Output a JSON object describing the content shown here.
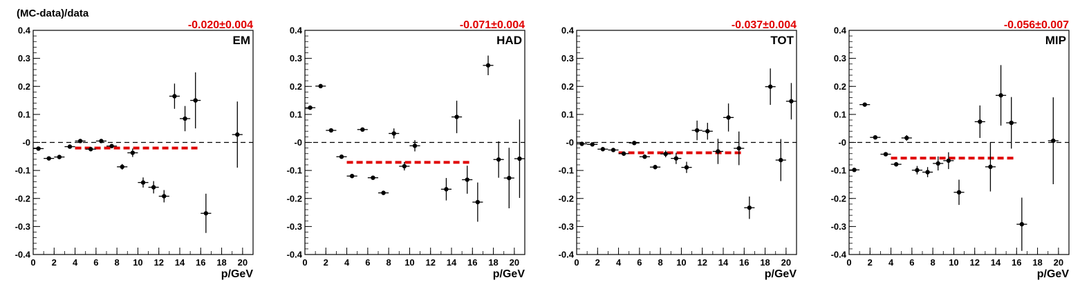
{
  "figure": {
    "ylabel": "(MC-data)/data",
    "xlabel": "p/GeV"
  },
  "colors": {
    "fit": "#e00000",
    "points": "#000000",
    "zero_line": "#000000"
  },
  "chart_data": [
    {
      "type": "scatter",
      "label": "EM",
      "fit_label": "-0.020±0.004",
      "fit": {
        "value": -0.02,
        "x_range": [
          4,
          16
        ]
      },
      "xlim": [
        0,
        21
      ],
      "ylim": [
        -0.4,
        0.4
      ],
      "xticks": [
        "0",
        "2",
        "4",
        "6",
        "8",
        "10",
        "12",
        "14",
        "16",
        "18",
        "20"
      ],
      "yticks": [
        "-0.4",
        "-0.3",
        "-0.2",
        "-0.1",
        "-0",
        "0.1",
        "0.2",
        "0.3",
        "0.4"
      ],
      "points": [
        {
          "x": 0.5,
          "y": -0.022,
          "err": 0.005
        },
        {
          "x": 1.5,
          "y": -0.057,
          "err": 0.004
        },
        {
          "x": 2.5,
          "y": -0.052,
          "err": 0.004
        },
        {
          "x": 3.5,
          "y": -0.015,
          "err": 0.004
        },
        {
          "x": 4.5,
          "y": 0.005,
          "err": 0.004
        },
        {
          "x": 5.5,
          "y": -0.024,
          "err": 0.005
        },
        {
          "x": 6.5,
          "y": 0.005,
          "err": 0.005
        },
        {
          "x": 7.5,
          "y": -0.013,
          "err": 0.007
        },
        {
          "x": 8.5,
          "y": -0.087,
          "err": 0.01
        },
        {
          "x": 9.5,
          "y": -0.037,
          "err": 0.015
        },
        {
          "x": 10.5,
          "y": -0.143,
          "err": 0.018
        },
        {
          "x": 11.5,
          "y": -0.16,
          "err": 0.022
        },
        {
          "x": 12.5,
          "y": -0.192,
          "err": 0.022
        },
        {
          "x": 13.5,
          "y": 0.165,
          "err": 0.045
        },
        {
          "x": 14.5,
          "y": 0.085,
          "err": 0.045
        },
        {
          "x": 15.5,
          "y": 0.15,
          "err": 0.1
        },
        {
          "x": 16.5,
          "y": -0.253,
          "err": 0.07
        },
        {
          "x": 19.5,
          "y": 0.028,
          "err": 0.118
        }
      ]
    },
    {
      "type": "scatter",
      "label": "HAD",
      "fit_label": "-0.071±0.004",
      "fit": {
        "value": -0.071,
        "x_range": [
          4,
          16
        ]
      },
      "xlim": [
        0,
        21
      ],
      "ylim": [
        -0.4,
        0.4
      ],
      "xticks": [
        "0",
        "2",
        "4",
        "6",
        "8",
        "10",
        "12",
        "14",
        "16",
        "18",
        "20"
      ],
      "yticks": [
        "-0.4",
        "-0.3",
        "-0.2",
        "-0.1",
        "-0",
        "0.1",
        "0.2",
        "0.3",
        "0.4"
      ],
      "points": [
        {
          "x": 0.5,
          "y": 0.124,
          "err": 0.004
        },
        {
          "x": 1.5,
          "y": 0.201,
          "err": 0.004
        },
        {
          "x": 2.5,
          "y": 0.043,
          "err": 0.004
        },
        {
          "x": 3.5,
          "y": -0.051,
          "err": 0.004
        },
        {
          "x": 4.5,
          "y": -0.12,
          "err": 0.004
        },
        {
          "x": 5.5,
          "y": 0.046,
          "err": 0.004
        },
        {
          "x": 6.5,
          "y": -0.126,
          "err": 0.004
        },
        {
          "x": 7.5,
          "y": -0.18,
          "err": 0.005
        },
        {
          "x": 8.5,
          "y": 0.032,
          "err": 0.018
        },
        {
          "x": 9.5,
          "y": -0.085,
          "err": 0.015
        },
        {
          "x": 10.5,
          "y": -0.012,
          "err": 0.02
        },
        {
          "x": 13.5,
          "y": -0.167,
          "err": 0.04
        },
        {
          "x": 14.5,
          "y": 0.091,
          "err": 0.058
        },
        {
          "x": 15.5,
          "y": -0.133,
          "err": 0.05
        },
        {
          "x": 16.5,
          "y": -0.213,
          "err": 0.07
        },
        {
          "x": 17.5,
          "y": 0.275,
          "err": 0.035
        },
        {
          "x": 18.5,
          "y": -0.061,
          "err": 0.065
        },
        {
          "x": 19.5,
          "y": -0.127,
          "err": 0.108
        },
        {
          "x": 20.5,
          "y": -0.058,
          "err": 0.14
        }
      ]
    },
    {
      "type": "scatter",
      "label": "TOT",
      "fit_label": "-0.037±0.004",
      "fit": {
        "value": -0.037,
        "x_range": [
          4,
          16
        ]
      },
      "xlim": [
        0,
        21
      ],
      "ylim": [
        -0.4,
        0.4
      ],
      "xticks": [
        "0",
        "2",
        "4",
        "6",
        "8",
        "10",
        "12",
        "14",
        "16",
        "18",
        "20"
      ],
      "yticks": [
        "-0.4",
        "-0.3",
        "-0.2",
        "-0.1",
        "-0",
        "0.1",
        "0.2",
        "0.3",
        "0.4"
      ],
      "points": [
        {
          "x": 0.5,
          "y": -0.005,
          "err": 0.004
        },
        {
          "x": 1.5,
          "y": -0.007,
          "err": 0.004
        },
        {
          "x": 2.5,
          "y": -0.024,
          "err": 0.004
        },
        {
          "x": 3.5,
          "y": -0.027,
          "err": 0.004
        },
        {
          "x": 4.5,
          "y": -0.04,
          "err": 0.004
        },
        {
          "x": 5.5,
          "y": -0.002,
          "err": 0.004
        },
        {
          "x": 6.5,
          "y": -0.051,
          "err": 0.006
        },
        {
          "x": 7.5,
          "y": -0.088,
          "err": 0.008
        },
        {
          "x": 8.5,
          "y": -0.041,
          "err": 0.012
        },
        {
          "x": 9.5,
          "y": -0.057,
          "err": 0.02
        },
        {
          "x": 10.5,
          "y": -0.089,
          "err": 0.02
        },
        {
          "x": 11.5,
          "y": 0.043,
          "err": 0.035
        },
        {
          "x": 12.5,
          "y": 0.04,
          "err": 0.03
        },
        {
          "x": 13.5,
          "y": -0.032,
          "err": 0.045
        },
        {
          "x": 14.5,
          "y": 0.089,
          "err": 0.05
        },
        {
          "x": 15.5,
          "y": -0.021,
          "err": 0.06
        },
        {
          "x": 16.5,
          "y": -0.233,
          "err": 0.04
        },
        {
          "x": 18.5,
          "y": 0.199,
          "err": 0.065
        },
        {
          "x": 19.5,
          "y": -0.063,
          "err": 0.075
        },
        {
          "x": 20.5,
          "y": 0.147,
          "err": 0.065
        }
      ]
    },
    {
      "type": "scatter",
      "label": "MIP",
      "fit_label": "-0.056±0.007",
      "fit": {
        "value": -0.056,
        "x_range": [
          4,
          16
        ]
      },
      "xlim": [
        0,
        21
      ],
      "ylim": [
        -0.4,
        0.4
      ],
      "xticks": [
        "0",
        "2",
        "4",
        "6",
        "8",
        "10",
        "12",
        "14",
        "16",
        "18",
        "20"
      ],
      "yticks": [
        "-0.4",
        "-0.3",
        "-0.2",
        "-0.1",
        "-0",
        "0.1",
        "0.2",
        "0.3",
        "0.4"
      ],
      "points": [
        {
          "x": 0.5,
          "y": -0.098,
          "err": 0.004
        },
        {
          "x": 1.5,
          "y": 0.135,
          "err": 0.004
        },
        {
          "x": 2.5,
          "y": 0.018,
          "err": 0.004
        },
        {
          "x": 3.5,
          "y": -0.042,
          "err": 0.004
        },
        {
          "x": 4.5,
          "y": -0.078,
          "err": 0.008
        },
        {
          "x": 5.5,
          "y": 0.016,
          "err": 0.01
        },
        {
          "x": 6.5,
          "y": -0.099,
          "err": 0.015
        },
        {
          "x": 7.5,
          "y": -0.106,
          "err": 0.018
        },
        {
          "x": 8.5,
          "y": -0.075,
          "err": 0.025
        },
        {
          "x": 9.5,
          "y": -0.065,
          "err": 0.03
        },
        {
          "x": 10.5,
          "y": -0.178,
          "err": 0.045
        },
        {
          "x": 12.5,
          "y": 0.074,
          "err": 0.058
        },
        {
          "x": 13.5,
          "y": -0.087,
          "err": 0.088
        },
        {
          "x": 14.5,
          "y": 0.168,
          "err": 0.108
        },
        {
          "x": 15.5,
          "y": 0.07,
          "err": 0.092
        },
        {
          "x": 16.5,
          "y": -0.292,
          "err": 0.095
        },
        {
          "x": 19.5,
          "y": 0.006,
          "err": 0.155
        }
      ]
    }
  ]
}
